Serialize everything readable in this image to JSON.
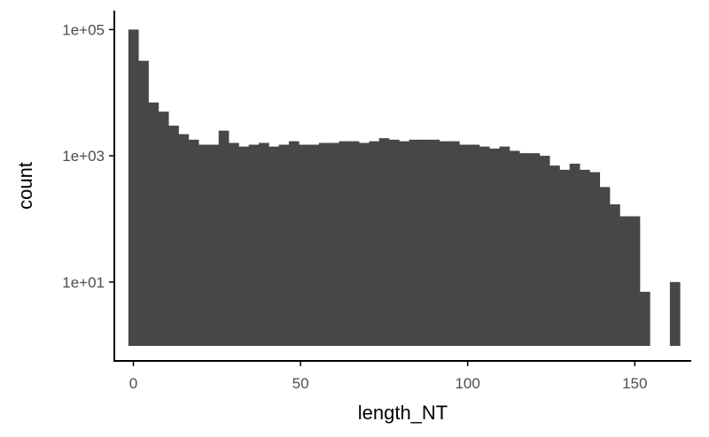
{
  "chart_data": {
    "type": "bar",
    "xlabel": "length_NT",
    "ylabel": "count",
    "y_scale": "log10",
    "bin_width": 3,
    "x_ticks": [
      0,
      50,
      100,
      150
    ],
    "x_tick_labels": [
      "0",
      "50",
      "100",
      "150"
    ],
    "y_ticks": [
      10,
      1000,
      100000
    ],
    "y_tick_labels": [
      "1e+01",
      "1e+03",
      "1e+05"
    ],
    "xlim": [
      -5.7,
      166.9
    ],
    "ylim_log10": [
      -0.25,
      5.3
    ],
    "grid": false,
    "bar_color": "#474747",
    "bins": [
      {
        "x": 0,
        "count": 100000
      },
      {
        "x": 3,
        "count": 32000
      },
      {
        "x": 6,
        "count": 7000
      },
      {
        "x": 9,
        "count": 5000
      },
      {
        "x": 12,
        "count": 3000
      },
      {
        "x": 15,
        "count": 2200
      },
      {
        "x": 18,
        "count": 1800
      },
      {
        "x": 21,
        "count": 1500
      },
      {
        "x": 24,
        "count": 1500
      },
      {
        "x": 27,
        "count": 2500
      },
      {
        "x": 30,
        "count": 1600
      },
      {
        "x": 33,
        "count": 1400
      },
      {
        "x": 36,
        "count": 1500
      },
      {
        "x": 39,
        "count": 1600
      },
      {
        "x": 42,
        "count": 1400
      },
      {
        "x": 45,
        "count": 1500
      },
      {
        "x": 48,
        "count": 1700
      },
      {
        "x": 51,
        "count": 1500
      },
      {
        "x": 54,
        "count": 1500
      },
      {
        "x": 57,
        "count": 1600
      },
      {
        "x": 60,
        "count": 1600
      },
      {
        "x": 63,
        "count": 1700
      },
      {
        "x": 66,
        "count": 1700
      },
      {
        "x": 69,
        "count": 1600
      },
      {
        "x": 72,
        "count": 1700
      },
      {
        "x": 75,
        "count": 1900
      },
      {
        "x": 78,
        "count": 1800
      },
      {
        "x": 81,
        "count": 1700
      },
      {
        "x": 84,
        "count": 1800
      },
      {
        "x": 87,
        "count": 1800
      },
      {
        "x": 90,
        "count": 1800
      },
      {
        "x": 93,
        "count": 1700
      },
      {
        "x": 96,
        "count": 1700
      },
      {
        "x": 99,
        "count": 1500
      },
      {
        "x": 102,
        "count": 1500
      },
      {
        "x": 105,
        "count": 1400
      },
      {
        "x": 108,
        "count": 1300
      },
      {
        "x": 111,
        "count": 1400
      },
      {
        "x": 114,
        "count": 1200
      },
      {
        "x": 117,
        "count": 1100
      },
      {
        "x": 120,
        "count": 1100
      },
      {
        "x": 123,
        "count": 1000
      },
      {
        "x": 126,
        "count": 700
      },
      {
        "x": 129,
        "count": 600
      },
      {
        "x": 132,
        "count": 750
      },
      {
        "x": 135,
        "count": 600
      },
      {
        "x": 138,
        "count": 550
      },
      {
        "x": 141,
        "count": 320
      },
      {
        "x": 144,
        "count": 170
      },
      {
        "x": 147,
        "count": 110
      },
      {
        "x": 150,
        "count": 110
      },
      {
        "x": 153,
        "count": 7
      },
      {
        "x": 156,
        "count": 0.8
      },
      {
        "x": 159,
        "count": null
      },
      {
        "x": 162,
        "count": 10
      }
    ]
  }
}
